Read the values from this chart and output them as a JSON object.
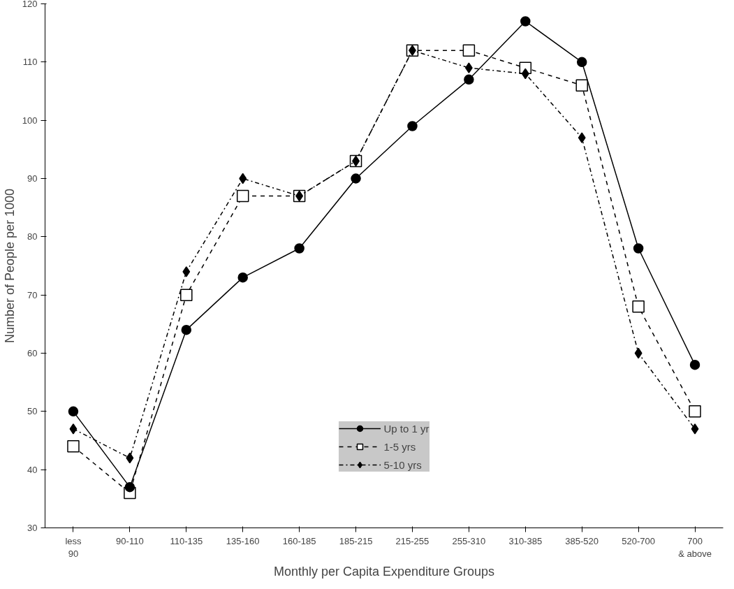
{
  "chart_data": {
    "type": "line",
    "xlabel": "Monthly per Capita Expenditure Groups",
    "ylabel": "Number of People per 1000",
    "categories": [
      "less\n90",
      "90-110",
      "110-135",
      "135-160",
      "160-185",
      "185-215",
      "215-255",
      "255-310",
      "310-385",
      "385-520",
      "520-700",
      "700\n& above"
    ],
    "ylim": [
      30,
      120
    ],
    "yticks": [
      30,
      40,
      50,
      60,
      70,
      80,
      90,
      100,
      110,
      120
    ],
    "grid": false,
    "legend": "bottom",
    "series": [
      {
        "name": "Up to 1 yr",
        "color": "#000000",
        "marker": "circle",
        "line_style": "solid",
        "values": [
          50,
          37,
          64,
          73,
          78,
          90,
          99,
          107,
          117,
          110,
          78,
          58
        ]
      },
      {
        "name": "1-5 yrs",
        "color": "#000000",
        "marker": "square",
        "line_style": "dashed",
        "values": [
          44,
          36,
          70,
          87,
          87,
          93,
          112,
          112,
          109,
          106,
          68,
          50
        ]
      },
      {
        "name": "5-10 yrs",
        "color": "#000000",
        "marker": "diamond",
        "line_style": "dashdot",
        "values": [
          47,
          42,
          74,
          90,
          87,
          93,
          112,
          109,
          108,
          97,
          60,
          47
        ]
      }
    ]
  }
}
